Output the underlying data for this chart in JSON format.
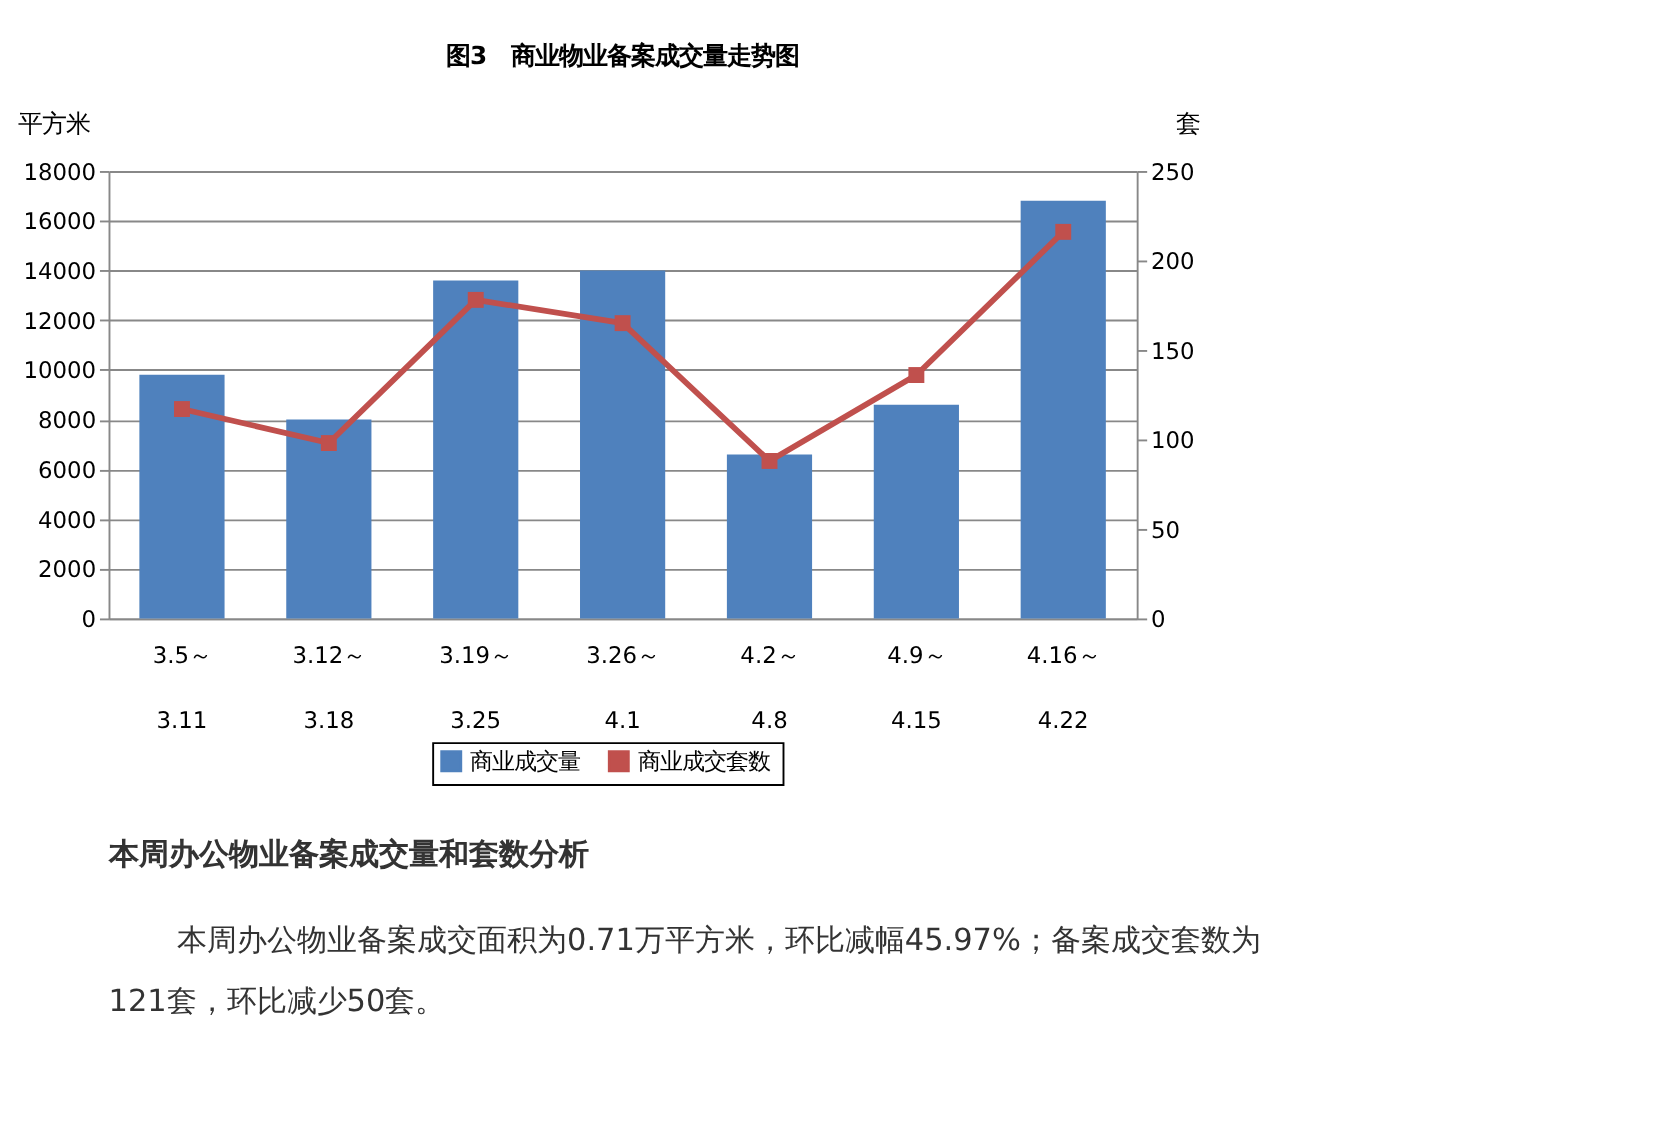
{
  "chart_data": {
    "type": "bar",
    "title": "图3　商业物业备案成交量走势图",
    "ylabel": "平方米",
    "y2label": "套",
    "categories": [
      "3.5～\n3.11",
      "3.12～\n3.18",
      "3.19～\n3.25",
      "3.26～\n4.1",
      "4.2～\n4.8",
      "4.9～\n4.15",
      "4.16～\n4.22"
    ],
    "series": [
      {
        "name": "商业成交量",
        "color": "#4f81bd",
        "values": [
          9800,
          8000,
          13600,
          14000,
          6600,
          8600,
          16800
        ]
      },
      {
        "name": "商业成交套数",
        "type": "line",
        "axis": "y2",
        "color": "#c0504d",
        "values": [
          117,
          98,
          178,
          165,
          88,
          136,
          216
        ]
      }
    ],
    "ylim": [
      0,
      18000
    ],
    "yticks": [
      0,
      2000,
      4000,
      6000,
      8000,
      10000,
      12000,
      14000,
      16000,
      18000
    ],
    "y2lim": [
      0,
      250
    ],
    "y2ticks": [
      0,
      50,
      100,
      150,
      200,
      250
    ],
    "grid": "y",
    "legend": "bottom",
    "marker": "square",
    "annotations": [
      "本周办公物业备案成交量和套数分析",
      "本周办公物业备案成交面积为0.71万平方米，环比减幅45.97%；备案成交套数为121套，环比减少50套。"
    ]
  }
}
